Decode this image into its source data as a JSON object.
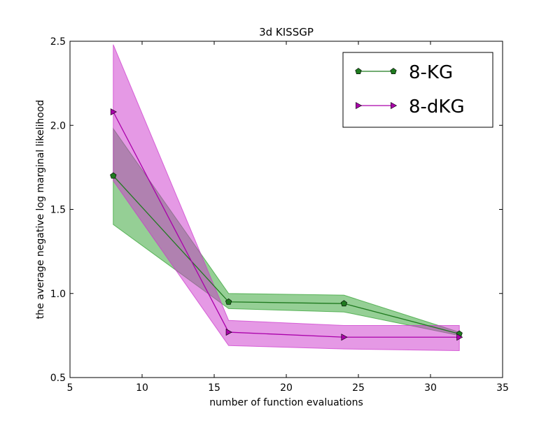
{
  "chart_data": {
    "type": "line",
    "title": "3d KISSGP",
    "xlabel": "number of function evaluations",
    "ylabel": "the average negative log marginal likelihood",
    "xlim": [
      5,
      35
    ],
    "ylim": [
      0.5,
      2.5
    ],
    "xticks": [
      5,
      10,
      15,
      20,
      25,
      30,
      35
    ],
    "xtick_labels": [
      "5",
      "10",
      "15",
      "20",
      "25",
      "30",
      "35"
    ],
    "yticks": [
      0.5,
      1.0,
      1.5,
      2.0,
      2.5
    ],
    "ytick_labels": [
      "0.5",
      "1.0",
      "1.5",
      "2.0",
      "2.5"
    ],
    "grid": false,
    "legend_position": "top-right",
    "x": [
      8,
      16,
      24,
      32
    ],
    "series": [
      {
        "name": "8-KG",
        "values": [
          1.7,
          0.95,
          0.94,
          0.76
        ],
        "lower": [
          1.41,
          0.91,
          0.89,
          0.75
        ],
        "upper": [
          1.98,
          1.0,
          0.99,
          0.77
        ],
        "marker": "pentagon",
        "color": "#1f7a1f",
        "fill_color": "#2ca02c"
      },
      {
        "name": "8-dKG",
        "values": [
          2.08,
          0.77,
          0.74,
          0.74
        ],
        "lower": [
          1.67,
          0.69,
          0.67,
          0.66
        ],
        "upper": [
          2.48,
          0.84,
          0.81,
          0.81
        ],
        "marker": "triangle-right",
        "color": "#aa00aa",
        "fill_color": "#cc33cc"
      }
    ]
  }
}
